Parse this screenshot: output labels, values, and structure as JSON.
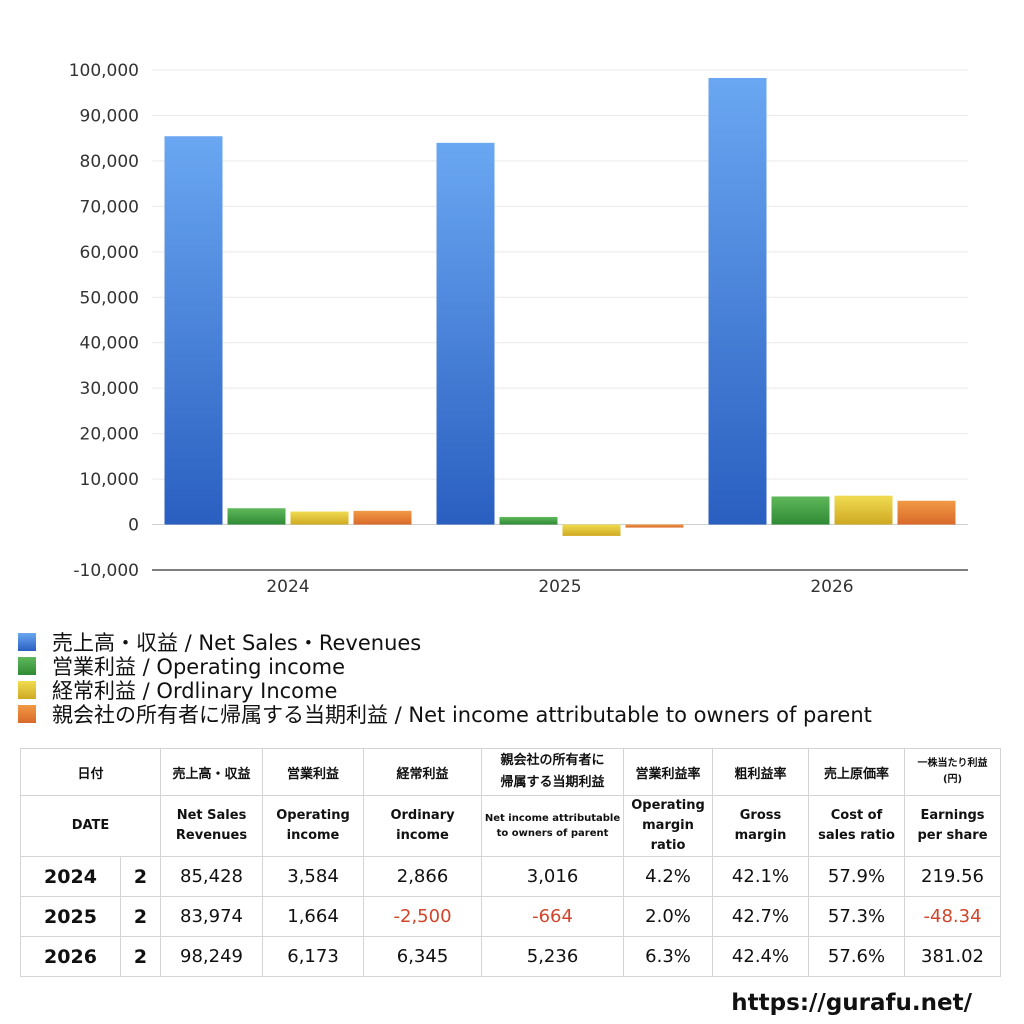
{
  "chart_data": {
    "type": "bar",
    "categories": [
      "2024",
      "2025",
      "2026"
    ],
    "series": [
      {
        "name": "売上高・収益 / Net Sales・Revenues",
        "values": [
          85428,
          83974,
          98249
        ],
        "color_top": "#6aa7f2",
        "color_bottom": "#2a5fc0"
      },
      {
        "name": "営業利益 / Operating income",
        "values": [
          3584,
          1664,
          6173
        ],
        "color_top": "#5fb85a",
        "color_bottom": "#2f8a35"
      },
      {
        "name": "経常利益 / Ordlinary Income",
        "values": [
          2866,
          -2500,
          6345
        ],
        "color_top": "#f0dc50",
        "color_bottom": "#cfa923"
      },
      {
        "name": "親会社の所有者に帰属する当期利益 / Net income attributable to owners of parent",
        "values": [
          3016,
          -664,
          5236
        ],
        "color_top": "#f19a45",
        "color_bottom": "#d9692a"
      }
    ],
    "ylim": [
      -10000,
      100000
    ],
    "yticks": [
      -10000,
      0,
      10000,
      20000,
      30000,
      40000,
      50000,
      60000,
      70000,
      80000,
      90000,
      100000
    ],
    "ytick_labels": [
      "-10,000",
      "0",
      "10,000",
      "20,000",
      "30,000",
      "40,000",
      "50,000",
      "60,000",
      "70,000",
      "80,000",
      "90,000",
      "100,000"
    ],
    "grid": true,
    "legend_placement": "bottom"
  },
  "legend": [
    {
      "label": "売上高・収益 / Net Sales・Revenues",
      "color": "#3d7fdc"
    },
    {
      "label": "営業利益 / Operating income",
      "color": "#43a043"
    },
    {
      "label": "経常利益 / Ordlinary Income",
      "color": "#e6c63a"
    },
    {
      "label": "親会社の所有者に帰属する当期利益 / Net income attributable to owners of parent",
      "color": "#e57e35"
    }
  ],
  "table": {
    "header_ja": {
      "date": "日付",
      "sales": "売上高・収益",
      "op": "営業利益",
      "ord": "経常利益",
      "ni_line1": "親会社の所有者に",
      "ni_line2": "帰属する当期利益",
      "opm": "営業利益率",
      "gm": "粗利益率",
      "cos": "売上原価率",
      "eps_line1": "一株当たり利益",
      "eps_line2": "(円)"
    },
    "header_en": {
      "date": "DATE",
      "sales_line1": "Net Sales",
      "sales_line2": "Revenues",
      "op_line1": "Operating",
      "op_line2": "income",
      "ord_line1": "Ordinary",
      "ord_line2": "income",
      "ni_line1": "Net income attributable",
      "ni_line2": "to owners of parent",
      "opm_line1": "Operating",
      "opm_line2": "margin",
      "opm_line3": "ratio",
      "gm_line1": "Gross",
      "gm_line2": "margin",
      "cos_line1": "Cost of",
      "cos_line2": "sales ratio",
      "eps_line1": "Earnings",
      "eps_line2": "per share"
    },
    "rows": [
      {
        "year": "2024",
        "q": "2",
        "sales": "85,428",
        "op": "3,584",
        "ord": "2,866",
        "ni": "3,016",
        "opm": "4.2%",
        "gm": "42.1%",
        "cos": "57.9%",
        "eps": "219.56"
      },
      {
        "year": "2025",
        "q": "2",
        "sales": "83,974",
        "op": "1,664",
        "ord": "-2,500",
        "ni": "-664",
        "opm": "2.0%",
        "gm": "42.7%",
        "cos": "57.3%",
        "eps": "-48.34"
      },
      {
        "year": "2026",
        "q": "2",
        "sales": "98,249",
        "op": "6,173",
        "ord": "6,345",
        "ni": "5,236",
        "opm": "6.3%",
        "gm": "42.4%",
        "cos": "57.6%",
        "eps": "381.02"
      }
    ]
  },
  "footer": {
    "url": "https://gurafu.net/"
  }
}
